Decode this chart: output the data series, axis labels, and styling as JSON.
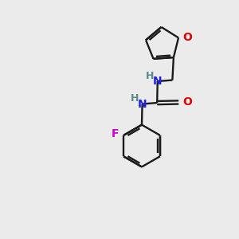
{
  "background_color": "#ebebeb",
  "bond_color": "#1a1a1a",
  "N_color": "#2020e0",
  "O_color": "#e00000",
  "F_color": "#cc00cc",
  "H_color": "#5a8a8a",
  "figsize": [
    3.0,
    3.0
  ],
  "dpi": 100,
  "xlim": [
    0,
    10
  ],
  "ylim": [
    0,
    10
  ]
}
